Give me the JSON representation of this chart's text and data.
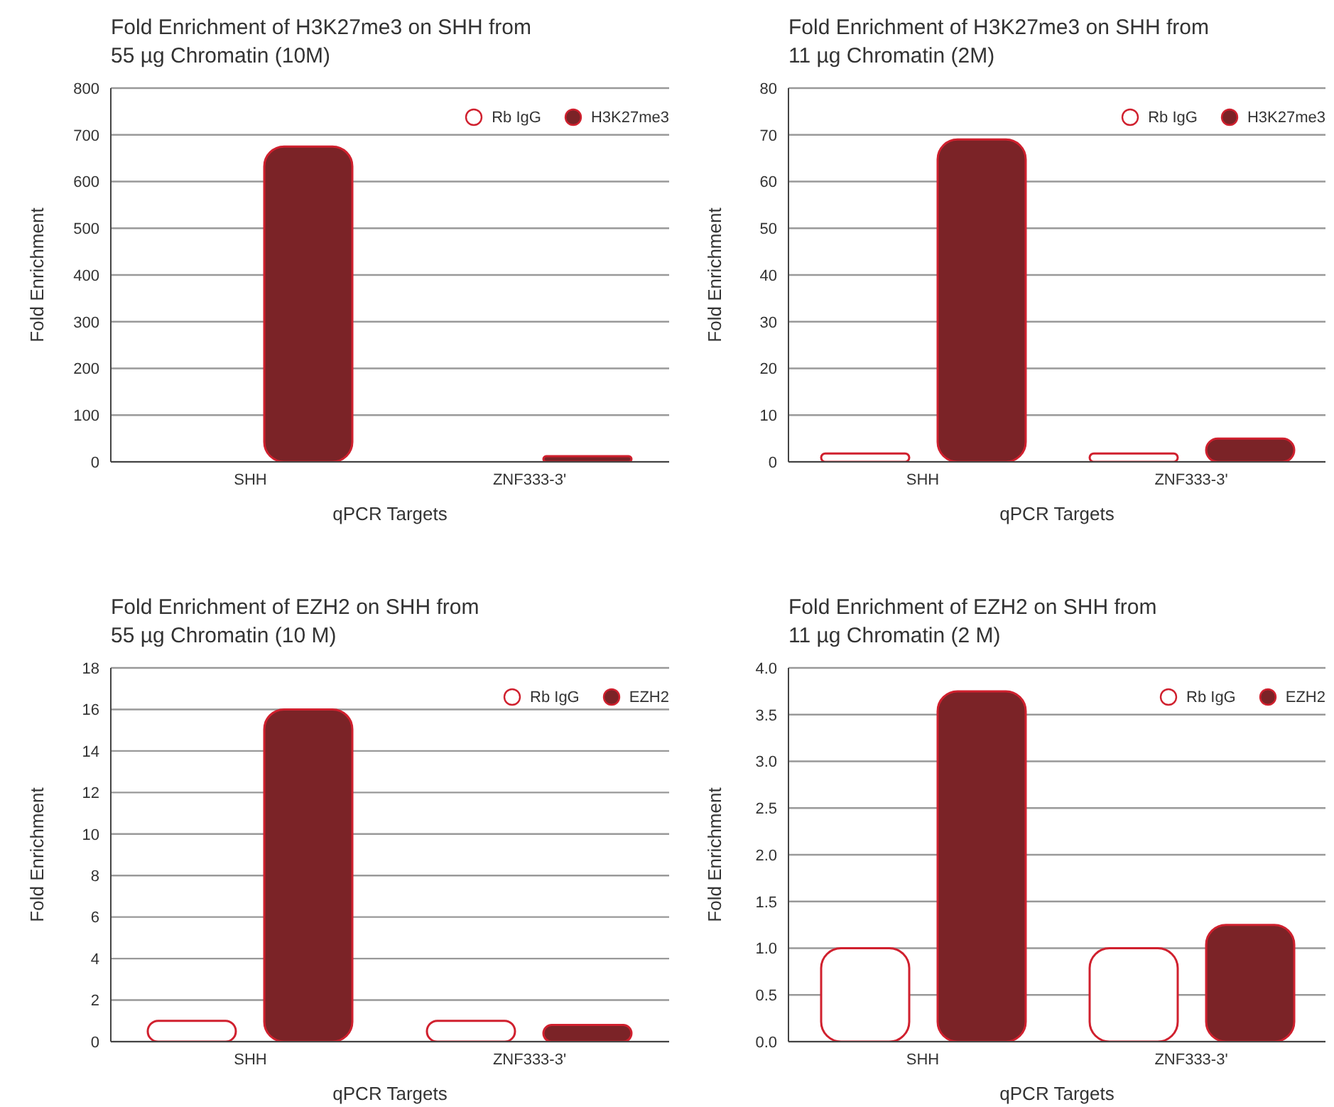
{
  "chart_data": [
    {
      "type": "bar",
      "title": "Fold Enrichment of H3K27me3 on SHH from\n55 µg Chromatin (10M)",
      "xlabel": "qPCR Targets",
      "ylabel": "Fold Enrichment",
      "categories": [
        "SHH",
        "ZNF333-3'"
      ],
      "series": [
        {
          "name": "Rb IgG",
          "color": "#ffffff",
          "values": [
            null,
            null
          ]
        },
        {
          "name": "H3K27me3",
          "color": "#7b2327",
          "values": [
            675,
            12
          ]
        }
      ],
      "ylim": [
        0,
        800
      ],
      "yticks": [
        0,
        100,
        200,
        300,
        400,
        500,
        600,
        700,
        800
      ],
      "grid": "y",
      "legend": "top right"
    },
    {
      "type": "bar",
      "title": "Fold Enrichment of H3K27me3 on SHH from\n11 µg Chromatin (2M)",
      "xlabel": "qPCR Targets",
      "ylabel": "Fold Enrichment",
      "categories": [
        "SHH",
        "ZNF333-3'"
      ],
      "series": [
        {
          "name": "Rb IgG",
          "color": "#ffffff",
          "values": [
            1.8,
            1.8
          ]
        },
        {
          "name": "H3K27me3",
          "color": "#7b2327",
          "values": [
            69,
            5
          ]
        }
      ],
      "ylim": [
        0,
        80
      ],
      "yticks": [
        0,
        10,
        20,
        30,
        40,
        50,
        60,
        70,
        80
      ],
      "grid": "y",
      "legend": "top right"
    },
    {
      "type": "bar",
      "title": "Fold Enrichment of EZH2 on SHH from\n55 µg Chromatin (10 M)",
      "xlabel": "qPCR Targets",
      "ylabel": "Fold Enrichment",
      "categories": [
        "SHH",
        "ZNF333-3'"
      ],
      "series": [
        {
          "name": "Rb IgG",
          "color": "#ffffff",
          "values": [
            1,
            1
          ]
        },
        {
          "name": "EZH2",
          "color": "#7b2327",
          "values": [
            16,
            0.8
          ]
        }
      ],
      "ylim": [
        0,
        18
      ],
      "yticks": [
        0,
        2,
        4,
        6,
        8,
        10,
        12,
        14,
        16,
        18
      ],
      "grid": "y",
      "legend": "top right"
    },
    {
      "type": "bar",
      "title": "Fold Enrichment of EZH2 on SHH from\n11 µg Chromatin (2 M)",
      "xlabel": "qPCR Targets",
      "ylabel": "Fold Enrichment",
      "categories": [
        "SHH",
        "ZNF333-3'"
      ],
      "series": [
        {
          "name": "Rb IgG",
          "color": "#ffffff",
          "values": [
            1,
            1
          ]
        },
        {
          "name": "EZH2",
          "color": "#7b2327",
          "values": [
            3.75,
            1.25
          ]
        }
      ],
      "ylim": [
        0,
        4
      ],
      "yticks": [
        {
          "value": 0,
          "label": "0.0"
        },
        {
          "value": 0.5,
          "label": "0.5"
        },
        {
          "value": 1,
          "label": "1.0"
        },
        {
          "value": 1.5,
          "label": "1.5"
        },
        {
          "value": 2,
          "label": "2.0"
        },
        {
          "value": 2.5,
          "label": "2.5"
        },
        {
          "value": 3,
          "label": "3.0"
        },
        {
          "value": 3.5,
          "label": "3.5"
        },
        {
          "value": 4,
          "label": "4.0"
        }
      ],
      "grid": "y",
      "legend": "top right"
    }
  ]
}
